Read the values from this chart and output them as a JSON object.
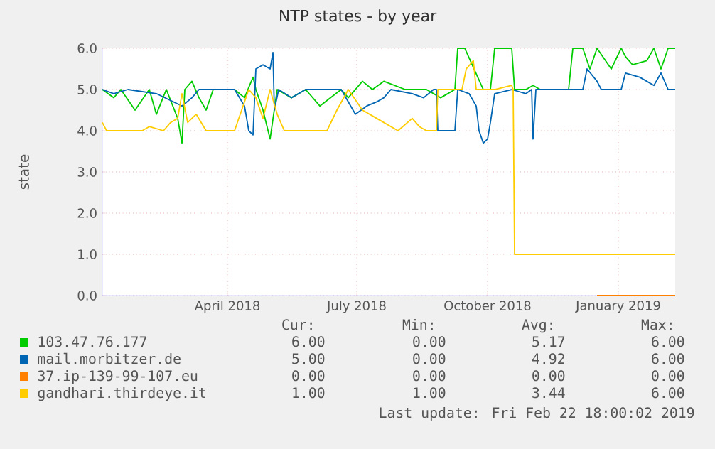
{
  "chart_data": {
    "type": "line",
    "title": "NTP states - by year",
    "ylabel": "state",
    "xlim": [
      "2018-01-03",
      "2019-02-10"
    ],
    "xticks": [
      {
        "value": "2018-04-01",
        "label": "April 2018"
      },
      {
        "value": "2018-07-01",
        "label": "July 2018"
      },
      {
        "value": "2018-10-01",
        "label": "October 2018"
      },
      {
        "value": "2019-01-01",
        "label": "January 2019"
      }
    ],
    "ylim": [
      0,
      6
    ],
    "yticks": [
      {
        "value": 0,
        "label": "0.0"
      },
      {
        "value": 1,
        "label": "1.0"
      },
      {
        "value": 2,
        "label": "2.0"
      },
      {
        "value": 3,
        "label": "3.0"
      },
      {
        "value": 4,
        "label": "4.0"
      },
      {
        "value": 5,
        "label": "5.0"
      },
      {
        "value": 6,
        "label": "6.0"
      }
    ],
    "grid": true,
    "legend": "bottom",
    "marker": "none",
    "line_style": "solid",
    "series": [
      {
        "name": "103.47.76.177",
        "color": "#00cc00",
        "x": [
          "2018-01-03",
          "2018-01-11",
          "2018-01-16",
          "2018-01-26",
          "2018-02-05",
          "2018-02-10",
          "2018-02-17",
          "2018-02-25",
          "2018-02-28",
          "2018-03-02",
          "2018-03-07",
          "2018-03-12",
          "2018-03-17",
          "2018-03-22",
          "2018-04-06",
          "2018-04-13",
          "2018-04-19",
          "2018-04-21",
          "2018-04-26",
          "2018-05-01",
          "2018-05-06",
          "2018-05-16",
          "2018-05-26",
          "2018-06-05",
          "2018-06-20",
          "2018-06-25",
          "2018-07-05",
          "2018-07-12",
          "2018-07-20",
          "2018-08-04",
          "2018-08-19",
          "2018-08-29",
          "2018-09-08",
          "2018-09-10",
          "2018-09-15",
          "2018-09-28",
          "2018-10-03",
          "2018-10-06",
          "2018-10-18",
          "2018-10-20",
          "2018-10-28",
          "2018-11-02",
          "2018-11-07",
          "2018-11-27",
          "2018-11-30",
          "2018-12-07",
          "2018-12-12",
          "2018-12-17",
          "2018-12-27",
          "2019-01-03",
          "2019-01-06",
          "2019-01-11",
          "2019-01-21",
          "2019-01-26",
          "2019-01-31",
          "2019-02-05",
          "2019-02-10"
        ],
        "values": [
          5.0,
          4.8,
          5.0,
          4.5,
          5.0,
          4.4,
          5.0,
          4.3,
          3.7,
          5.0,
          5.2,
          4.8,
          4.5,
          5.0,
          5.0,
          4.8,
          5.3,
          5.0,
          4.5,
          3.8,
          5.0,
          4.8,
          5.0,
          4.6,
          5.0,
          4.8,
          5.2,
          5.0,
          5.2,
          5.0,
          5.0,
          4.8,
          5.0,
          6.0,
          6.0,
          5.0,
          5.0,
          6.0,
          6.0,
          5.0,
          5.0,
          5.1,
          5.0,
          5.0,
          6.0,
          6.0,
          5.5,
          6.0,
          5.5,
          6.0,
          5.8,
          5.6,
          5.7,
          6.0,
          5.5,
          6.0,
          6.0
        ]
      },
      {
        "name": "mail.morbitzer.de",
        "color": "#0066b3",
        "x": [
          "2018-01-03",
          "2018-01-11",
          "2018-01-21",
          "2018-02-10",
          "2018-02-28",
          "2018-03-07",
          "2018-03-12",
          "2018-04-06",
          "2018-04-13",
          "2018-04-16",
          "2018-04-19",
          "2018-04-21",
          "2018-04-26",
          "2018-05-01",
          "2018-05-03",
          "2018-05-04",
          "2018-05-07",
          "2018-05-16",
          "2018-05-26",
          "2018-06-20",
          "2018-06-25",
          "2018-06-30",
          "2018-07-08",
          "2018-07-15",
          "2018-07-20",
          "2018-07-25",
          "2018-08-09",
          "2018-08-17",
          "2018-08-24",
          "2018-08-26",
          "2018-08-27",
          "2018-09-08",
          "2018-09-10",
          "2018-09-18",
          "2018-09-23",
          "2018-09-25",
          "2018-09-28",
          "2018-10-01",
          "2018-10-03",
          "2018-10-06",
          "2018-10-18",
          "2018-10-28",
          "2018-11-01",
          "2018-11-02",
          "2018-11-04",
          "2018-12-07",
          "2018-12-10",
          "2018-12-17",
          "2018-12-20",
          "2019-01-03",
          "2019-01-06",
          "2019-01-16",
          "2019-01-26",
          "2019-01-31",
          "2019-02-05",
          "2019-02-10"
        ],
        "values": [
          5.0,
          4.9,
          5.0,
          4.9,
          4.6,
          4.8,
          5.0,
          5.0,
          4.6,
          4.0,
          3.9,
          5.5,
          5.6,
          5.5,
          5.9,
          4.5,
          5.0,
          4.8,
          5.0,
          5.0,
          4.7,
          4.4,
          4.6,
          4.7,
          4.8,
          5.0,
          4.9,
          4.8,
          5.0,
          5.0,
          4.0,
          4.0,
          5.0,
          4.9,
          4.6,
          4.0,
          3.7,
          3.8,
          4.2,
          4.9,
          5.0,
          4.9,
          5.0,
          3.8,
          5.0,
          5.0,
          5.5,
          5.2,
          5.0,
          5.0,
          5.4,
          5.3,
          5.1,
          5.4,
          5.0,
          5.0
        ]
      },
      {
        "name": "37.ip-139-99-107.eu",
        "color": "#ff8000",
        "x": [
          "2018-12-17",
          "2019-02-10"
        ],
        "values": [
          0.0,
          0.0
        ]
      },
      {
        "name": "gandhari.thirdeye.it",
        "color": "#ffcc00",
        "x": [
          "2018-01-03",
          "2018-01-06",
          "2018-01-31",
          "2018-02-05",
          "2018-02-15",
          "2018-02-20",
          "2018-02-25",
          "2018-02-28",
          "2018-03-04",
          "2018-03-10",
          "2018-03-17",
          "2018-04-06",
          "2018-04-11",
          "2018-04-16",
          "2018-04-21",
          "2018-04-26",
          "2018-05-01",
          "2018-05-06",
          "2018-05-11",
          "2018-06-10",
          "2018-06-17",
          "2018-06-25",
          "2018-07-05",
          "2018-07-15",
          "2018-07-30",
          "2018-08-09",
          "2018-08-14",
          "2018-08-19",
          "2018-08-26",
          "2018-08-27",
          "2018-09-13",
          "2018-09-16",
          "2018-09-21",
          "2018-09-23",
          "2018-10-06",
          "2018-10-18",
          "2018-10-19",
          "2018-10-20",
          "2019-02-10"
        ],
        "values": [
          4.2,
          4.0,
          4.0,
          4.1,
          4.0,
          4.2,
          4.3,
          4.9,
          4.2,
          4.4,
          4.0,
          4.0,
          4.5,
          5.0,
          4.8,
          4.3,
          5.0,
          4.4,
          4.0,
          4.0,
          4.5,
          5.0,
          4.5,
          4.3,
          4.0,
          4.3,
          4.1,
          4.0,
          4.0,
          5.0,
          5.0,
          5.5,
          5.7,
          5.0,
          5.0,
          5.1,
          5.0,
          1.0,
          1.0
        ]
      }
    ],
    "annotations": [
      "Cur:",
      "Min:",
      "Avg:",
      "Max:",
      "6.00",
      "0.00",
      "5.17",
      "6.00",
      "5.00",
      "0.00",
      "4.92",
      "6.00",
      "0.00",
      "0.00",
      "0.00",
      "0.00",
      "1.00",
      "1.00",
      "3.44",
      "6.00",
      "Last update: Fri Feb 22 18:00:02 2019"
    ]
  }
}
